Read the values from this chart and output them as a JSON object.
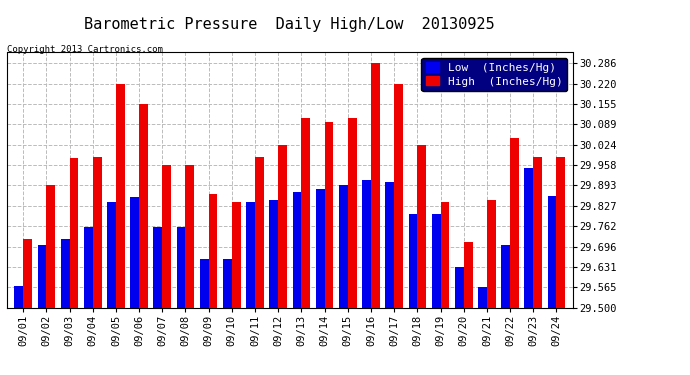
{
  "title": "Barometric Pressure  Daily High/Low  20130925",
  "copyright": "Copyright 2013 Cartronics.com",
  "legend_low": "Low  (Inches/Hg)",
  "legend_high": "High  (Inches/Hg)",
  "dates": [
    "09/01",
    "09/02",
    "09/03",
    "09/04",
    "09/05",
    "09/06",
    "09/07",
    "09/08",
    "09/09",
    "09/10",
    "09/11",
    "09/12",
    "09/13",
    "09/14",
    "09/15",
    "09/16",
    "09/17",
    "09/18",
    "09/19",
    "09/20",
    "09/21",
    "09/22",
    "09/23",
    "09/24"
  ],
  "low": [
    29.57,
    29.7,
    29.72,
    29.76,
    29.84,
    29.855,
    29.76,
    29.76,
    29.655,
    29.655,
    29.84,
    29.845,
    29.87,
    29.88,
    29.895,
    29.91,
    29.905,
    29.802,
    29.8,
    29.63,
    29.565,
    29.7,
    29.95,
    29.86
  ],
  "high": [
    29.72,
    29.893,
    29.98,
    29.985,
    30.22,
    30.155,
    29.958,
    29.958,
    29.865,
    29.84,
    29.985,
    30.024,
    30.11,
    30.095,
    30.11,
    30.286,
    30.22,
    30.024,
    29.84,
    29.71,
    29.845,
    30.044,
    29.985,
    29.985
  ],
  "ylim_min": 29.5,
  "ylim_max": 30.32,
  "yticks": [
    29.5,
    29.565,
    29.631,
    29.696,
    29.762,
    29.827,
    29.893,
    29.958,
    30.024,
    30.089,
    30.155,
    30.22,
    30.286
  ],
  "bar_width": 0.38,
  "low_color": "#0000ee",
  "high_color": "#ee0000",
  "background_color": "#ffffff",
  "grid_color": "#bbbbbb",
  "title_fontsize": 11,
  "tick_fontsize": 7.5,
  "legend_fontsize": 8
}
